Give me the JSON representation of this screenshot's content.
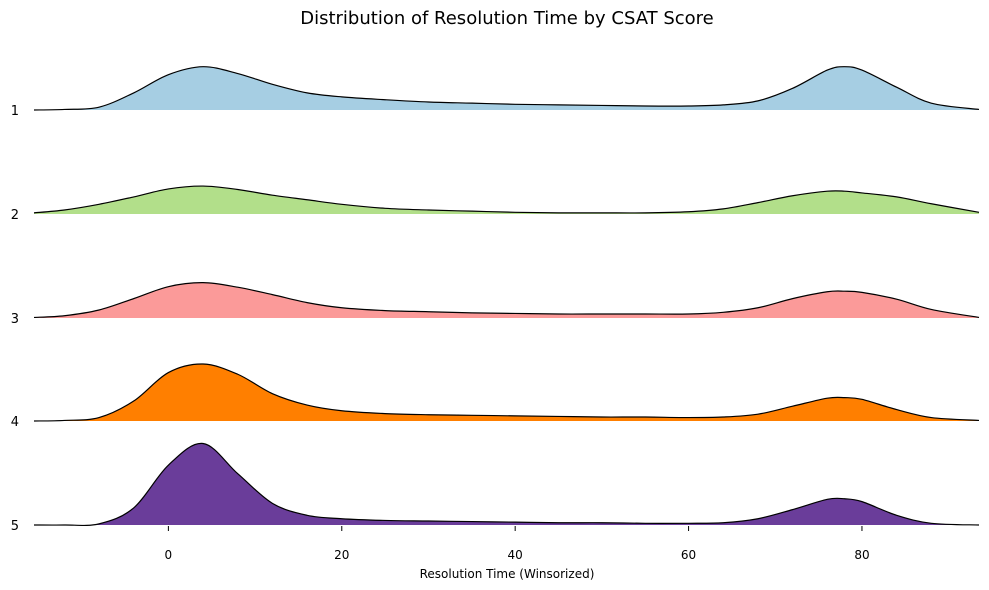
{
  "chart_data": {
    "type": "ridgeline",
    "title": "Distribution of Resolution Time by CSAT Score",
    "xlabel": "Resolution Time (Winsorized)",
    "ylabel": "",
    "xlim": [
      -15.5,
      93.5
    ],
    "xticks": [
      0,
      20,
      40,
      60,
      80
    ],
    "grid": false,
    "legend": "none",
    "categories": [
      "1",
      "2",
      "3",
      "4",
      "5"
    ],
    "x": [
      -15.5,
      -12,
      -8,
      -4,
      0,
      4,
      8,
      12,
      16,
      20,
      25,
      30,
      35,
      40,
      45,
      50,
      55,
      60,
      64,
      68,
      72,
      76,
      78,
      80,
      84,
      88,
      93.5
    ],
    "series": [
      {
        "name": "1",
        "color": "#a6cee3",
        "values": [
          0.0,
          0.01,
          0.05,
          0.3,
          0.62,
          0.76,
          0.64,
          0.45,
          0.3,
          0.23,
          0.18,
          0.14,
          0.12,
          0.1,
          0.09,
          0.08,
          0.07,
          0.07,
          0.09,
          0.16,
          0.38,
          0.7,
          0.76,
          0.7,
          0.4,
          0.12,
          0.01
        ]
      },
      {
        "name": "2",
        "color": "#b2df8a",
        "values": [
          0.02,
          0.07,
          0.17,
          0.3,
          0.44,
          0.49,
          0.43,
          0.33,
          0.25,
          0.17,
          0.1,
          0.07,
          0.05,
          0.03,
          0.02,
          0.02,
          0.02,
          0.04,
          0.09,
          0.2,
          0.32,
          0.4,
          0.4,
          0.37,
          0.3,
          0.18,
          0.03
        ]
      },
      {
        "name": "3",
        "color": "#fb9a99",
        "values": [
          0.01,
          0.04,
          0.14,
          0.34,
          0.55,
          0.62,
          0.54,
          0.41,
          0.27,
          0.18,
          0.13,
          0.11,
          0.09,
          0.08,
          0.07,
          0.07,
          0.07,
          0.07,
          0.1,
          0.18,
          0.34,
          0.46,
          0.47,
          0.45,
          0.33,
          0.15,
          0.01
        ]
      },
      {
        "name": "4",
        "color": "#ff7f00",
        "values": [
          0.0,
          0.01,
          0.06,
          0.35,
          0.85,
          1.0,
          0.82,
          0.48,
          0.28,
          0.18,
          0.13,
          0.11,
          0.1,
          0.09,
          0.08,
          0.07,
          0.07,
          0.06,
          0.07,
          0.12,
          0.26,
          0.4,
          0.41,
          0.38,
          0.2,
          0.06,
          0.01
        ]
      },
      {
        "name": "5",
        "color": "#6a3d9a",
        "values": [
          0.0,
          0.0,
          0.02,
          0.3,
          1.05,
          1.43,
          0.9,
          0.38,
          0.17,
          0.11,
          0.08,
          0.07,
          0.06,
          0.05,
          0.04,
          0.04,
          0.03,
          0.03,
          0.04,
          0.11,
          0.27,
          0.45,
          0.46,
          0.41,
          0.17,
          0.03,
          0.0
        ]
      }
    ]
  }
}
